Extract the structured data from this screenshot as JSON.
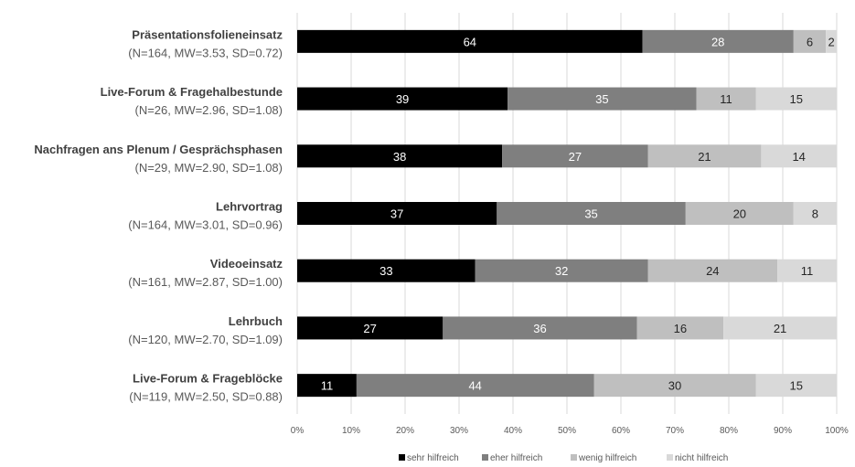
{
  "chart_data": {
    "type": "bar",
    "orientation": "horizontal",
    "stacked": true,
    "categories": [
      {
        "title": "Präsentationsfolieneinsatz",
        "subtitle": "(N=164, MW=3.53, SD=0.72)"
      },
      {
        "title": "Live-Forum & Fragehalbestunde",
        "subtitle": "(N=26, MW=2.96, SD=1.08)"
      },
      {
        "title": "Nachfragen ans Plenum / Gesprächsphasen",
        "subtitle": "(N=29, MW=2.90, SD=1.08)"
      },
      {
        "title": "Lehrvortrag",
        "subtitle": "(N=164, MW=3.01, SD=0.96)"
      },
      {
        "title": "Videoeinsatz",
        "subtitle": "(N=161, MW=2.87, SD=1.00)"
      },
      {
        "title": "Lehrbuch",
        "subtitle": "(N=120, MW=2.70, SD=1.09)"
      },
      {
        "title": "Live-Forum & Frageblöcke",
        "subtitle": "(N=119, MW=2.50, SD=0.88)"
      }
    ],
    "series": [
      {
        "name": "sehr hilfreich",
        "color": "#000000",
        "label_color": "#ffffff",
        "values": [
          64,
          39,
          38,
          37,
          33,
          27,
          11
        ]
      },
      {
        "name": "eher hilfreich",
        "color": "#7f7f7f",
        "label_color": "#ffffff",
        "values": [
          28,
          35,
          27,
          35,
          32,
          36,
          44
        ]
      },
      {
        "name": "wenig hilfreich",
        "color": "#bfbfbf",
        "label_color": "#262626",
        "values": [
          6,
          11,
          21,
          20,
          24,
          16,
          30
        ]
      },
      {
        "name": "nicht hilfreich",
        "color": "#d9d9d9",
        "label_color": "#262626",
        "values": [
          2,
          15,
          14,
          8,
          11,
          21,
          15
        ]
      }
    ],
    "xlim": [
      0,
      100
    ],
    "xticks": [
      "0%",
      "10%",
      "20%",
      "30%",
      "40%",
      "50%",
      "60%",
      "70%",
      "80%",
      "90%",
      "100%"
    ],
    "grid": true,
    "legend_position": "bottom",
    "title": "",
    "xlabel": "",
    "ylabel": ""
  }
}
